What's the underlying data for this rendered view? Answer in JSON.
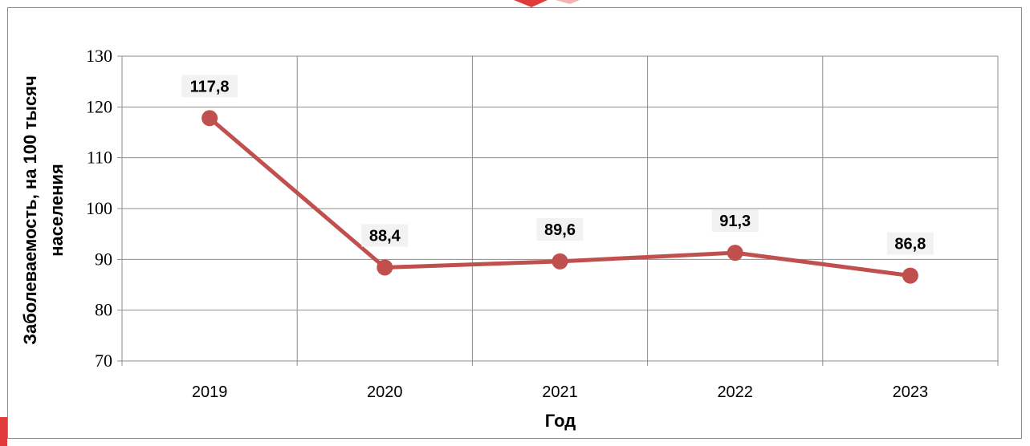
{
  "chart_data": {
    "type": "line",
    "title": "",
    "xlabel": "Год",
    "ylabel_lines": [
      "Заболеваемость, на 100 тысяч",
      "населения"
    ],
    "categories": [
      "2019",
      "2020",
      "2021",
      "2022",
      "2023"
    ],
    "series": [
      {
        "values": [
          117.8,
          88.4,
          89.6,
          91.3,
          86.8
        ],
        "data_labels": [
          "117,8",
          "88,4",
          "89,6",
          "91,3",
          "86,8"
        ],
        "color": "#c0504d"
      }
    ],
    "ylim": [
      70,
      130
    ],
    "yticks": [
      "70",
      "80",
      "90",
      "100",
      "110",
      "120",
      "130"
    ],
    "grid": true,
    "legend": "none"
  },
  "colors": {
    "grid": "#8c8c8c",
    "frame": "#8c8c8c",
    "label_bg": "#f2f2f2",
    "decor_accent": "#e03a3a"
  }
}
